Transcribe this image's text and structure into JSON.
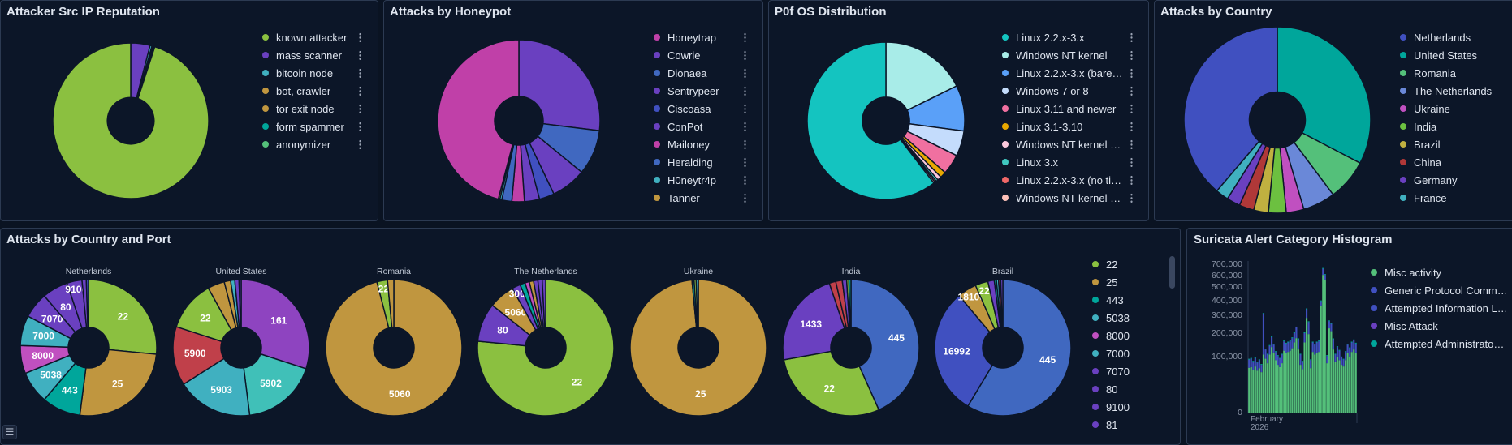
{
  "panels": {
    "reputation": {
      "title": "Attacker Src IP Reputation",
      "slices": [
        {
          "label": "known attacker",
          "value": 95,
          "color": "#8bc040"
        },
        {
          "label": "mass scanner",
          "value": 4,
          "color": "#6a40c0"
        },
        {
          "label": "bitcoin node",
          "value": 0.4,
          "color": "#40b0c0"
        },
        {
          "label": "bot, crawler",
          "value": 0.2,
          "color": "#c0963f"
        },
        {
          "label": "tor exit node",
          "value": 0.2,
          "color": "#c0963f"
        },
        {
          "label": "form spammer",
          "value": 0.1,
          "color": "#00a69b"
        },
        {
          "label": "anonymizer",
          "value": 0.1,
          "color": "#54c07a"
        }
      ]
    },
    "honeypot": {
      "title": "Attacks by Honeypot",
      "slices": [
        {
          "label": "Honeytrap",
          "value": 46,
          "color": "#c040a8"
        },
        {
          "label": "Cowrie",
          "value": 27,
          "color": "#6a40c0"
        },
        {
          "label": "Dionaea",
          "value": 9,
          "color": "#4068c0"
        },
        {
          "label": "Sentrypeer",
          "value": 7,
          "color": "#6a40c0"
        },
        {
          "label": "Ciscoasa",
          "value": 3,
          "color": "#4050c0"
        },
        {
          "label": "ConPot",
          "value": 3,
          "color": "#6a40c0"
        },
        {
          "label": "Mailoney",
          "value": 2.5,
          "color": "#c040a8"
        },
        {
          "label": "Heralding",
          "value": 2,
          "color": "#4068c0"
        },
        {
          "label": "H0neytr4p",
          "value": 0.4,
          "color": "#40b0c0"
        },
        {
          "label": "Tanner",
          "value": 0.3,
          "color": "#c0963f"
        }
      ]
    },
    "p0f": {
      "title": "P0f OS Distribution",
      "slices": [
        {
          "label": "Linux 2.2.x-3.x",
          "value": 58,
          "color": "#14c4c0"
        },
        {
          "label": "Windows NT kernel",
          "value": 17,
          "color": "#a8ece8"
        },
        {
          "label": "Linux 2.2.x-3.x (bare…",
          "value": 9,
          "color": "#5aa0f8"
        },
        {
          "label": "Windows 7 or 8",
          "value": 5,
          "color": "#c4dcfc"
        },
        {
          "label": "Linux 3.11 and newer",
          "value": 4,
          "color": "#f070a0"
        },
        {
          "label": "Linux 3.1-3.10",
          "value": 1.2,
          "color": "#e8a800"
        },
        {
          "label": "Windows NT kernel …",
          "value": 0.8,
          "color": "#fcc8dc"
        },
        {
          "label": "Linux 3.x",
          "value": 0.4,
          "color": "#40c8c0"
        },
        {
          "label": "Linux 2.2.x-3.x (no ti…",
          "value": 0.3,
          "color": "#f06868"
        },
        {
          "label": "Windows NT kernel …",
          "value": 0.3,
          "color": "#fcc0b8"
        }
      ]
    },
    "country": {
      "title": "Attacks by Country",
      "slices": [
        {
          "label": "Netherlands",
          "value": 38,
          "color": "#4050c0"
        },
        {
          "label": "United States",
          "value": 32,
          "color": "#00a69b"
        },
        {
          "label": "Romania",
          "value": 7,
          "color": "#54c07a"
        },
        {
          "label": "The Netherlands",
          "value": 5.5,
          "color": "#6a88d8"
        },
        {
          "label": "Ukraine",
          "value": 3,
          "color": "#c050c0"
        },
        {
          "label": "India",
          "value": 3,
          "color": "#6cc040"
        },
        {
          "label": "Brazil",
          "value": 2.5,
          "color": "#c0b040"
        },
        {
          "label": "China",
          "value": 2.5,
          "color": "#b03838"
        },
        {
          "label": "Germany",
          "value": 2.3,
          "color": "#6a40c0"
        },
        {
          "label": "France",
          "value": 2.2,
          "color": "#40b0c0"
        }
      ]
    }
  },
  "country_port": {
    "title": "Attacks by Country and Port",
    "legend": [
      {
        "label": "22",
        "color": "#8bc040"
      },
      {
        "label": "25",
        "color": "#c0963f"
      },
      {
        "label": "443",
        "color": "#00a69b"
      },
      {
        "label": "5038",
        "color": "#40b0c0"
      },
      {
        "label": "8000",
        "color": "#c050c0"
      },
      {
        "label": "7000",
        "color": "#40b0c0"
      },
      {
        "label": "7070",
        "color": "#6a40c0"
      },
      {
        "label": "80",
        "color": "#6a40c0"
      },
      {
        "label": "9100",
        "color": "#6a40c0"
      },
      {
        "label": "81",
        "color": "#6a40c0"
      }
    ],
    "charts": [
      {
        "country": "Netherlands",
        "slices": [
          {
            "port": "22",
            "v": 26,
            "c": "#8bc040"
          },
          {
            "port": "25",
            "v": 25,
            "c": "#c0963f"
          },
          {
            "port": "443",
            "v": 9,
            "c": "#00a69b"
          },
          {
            "port": "5038",
            "v": 7.5,
            "c": "#40b0c0"
          },
          {
            "port": "8000",
            "v": 6.5,
            "c": "#c050c0"
          },
          {
            "port": "7000",
            "v": 7,
            "c": "#40b0c0"
          },
          {
            "port": "7070",
            "v": 6,
            "c": "#6a40c0"
          },
          {
            "port": "80",
            "v": 6,
            "c": "#6a40c0"
          },
          {
            "port": "9100",
            "v": 3.5,
            "c": "#6a40c0"
          },
          {
            "v": 1,
            "c": "#6a40c0"
          },
          {
            "v": 0.5,
            "c": "#4050c0"
          }
        ]
      },
      {
        "country": "United States",
        "slices": [
          {
            "port": "161",
            "v": 30,
            "c": "#8e44c0"
          },
          {
            "port": "5902",
            "v": 18,
            "c": "#40c0b8"
          },
          {
            "port": "5903",
            "v": 18,
            "c": "#40b0c0"
          },
          {
            "port": "5900",
            "v": 14,
            "c": "#c0404a"
          },
          {
            "port": "22",
            "v": 12,
            "c": "#8bc040"
          },
          {
            "v": 4,
            "c": "#c0963f"
          },
          {
            "v": 1.5,
            "c": "#c0963f"
          },
          {
            "v": 1,
            "c": "#40b0c0"
          },
          {
            "v": 1,
            "c": "#6a40c0"
          },
          {
            "v": 0.5,
            "c": "#6a40c0"
          }
        ]
      },
      {
        "country": "Romania",
        "slices": [
          {
            "port": "5060",
            "v": 96,
            "c": "#c0963f"
          },
          {
            "port": "22",
            "v": 2.5,
            "c": "#8bc040"
          },
          {
            "v": 1.5,
            "c": "#c0963f"
          }
        ]
      },
      {
        "country": "The Netherlands",
        "slices": [
          {
            "port": "22",
            "v": 75,
            "c": "#8bc040"
          },
          {
            "port": "80",
            "v": 9,
            "c": "#6a40c0"
          },
          {
            "port": "5060",
            "v": 6,
            "c": "#c0963f"
          },
          {
            "port": "3000",
            "v": 2,
            "c": "#6a40c0"
          },
          {
            "v": 1.2,
            "c": "#00a69b"
          },
          {
            "v": 1,
            "c": "#c050c0"
          },
          {
            "v": 1,
            "c": "#c0963f"
          },
          {
            "v": 1,
            "c": "#6a40c0"
          },
          {
            "v": 1,
            "c": "#6a40c0"
          },
          {
            "v": 0.8,
            "c": "#6a40c0"
          }
        ]
      },
      {
        "country": "Ukraine",
        "slices": [
          {
            "port": "25",
            "v": 98.5,
            "c": "#c0963f"
          },
          {
            "v": 0.5,
            "c": "#00a69b"
          },
          {
            "v": 0.5,
            "c": "#8bc040"
          },
          {
            "v": 0.5,
            "c": "#40b0c0"
          }
        ]
      },
      {
        "country": "India",
        "slices": [
          {
            "port": "445",
            "v": 42,
            "c": "#4068c0"
          },
          {
            "port": "22",
            "v": 28,
            "c": "#8bc040"
          },
          {
            "port": "1433",
            "v": 22,
            "c": "#6a40c0"
          },
          {
            "v": 1.5,
            "c": "#c0404a"
          },
          {
            "v": 1.5,
            "c": "#c0404a"
          },
          {
            "v": 1,
            "c": "#6a40c0"
          },
          {
            "v": 0.5,
            "c": "#8bc040"
          },
          {
            "v": 0.5,
            "c": "#00a69b"
          }
        ]
      },
      {
        "country": "Brazil",
        "slices": [
          {
            "port": "445",
            "v": 58,
            "c": "#4068c0"
          },
          {
            "port": "16992",
            "v": 30,
            "c": "#4050c0"
          },
          {
            "port": "18100",
            "v": 4.5,
            "c": "#c0963f"
          },
          {
            "port": "22",
            "v": 3,
            "c": "#8bc040"
          },
          {
            "v": 1.5,
            "c": "#6a40c0"
          },
          {
            "v": 0.5,
            "c": "#00a69b"
          },
          {
            "v": 0.5,
            "c": "#40b0c0"
          },
          {
            "v": 0.5,
            "c": "#c0404a"
          },
          {
            "v": 0.5,
            "c": "#6a40c0"
          }
        ]
      }
    ]
  },
  "chart_data": {
    "type": "bar",
    "title": "Suricata Alert Category Histogram",
    "stacked": true,
    "yscale": "sqrt",
    "ylim": [
      0,
      700000
    ],
    "yticks": [
      "0",
      "100,000",
      "200,000",
      "300,000",
      "400,000",
      "500,000",
      "600,000",
      "700,000"
    ],
    "ytick_values": [
      0,
      100000,
      200000,
      300000,
      400000,
      500000,
      600000,
      700000
    ],
    "xlabel_tick": [
      "February",
      "2026"
    ],
    "legend": [
      {
        "label": "Misc activity",
        "color": "#54c07a"
      },
      {
        "label": "Generic Protocol Comm…",
        "color": "#4050c0"
      },
      {
        "label": "Attempted Information L…",
        "color": "#4050c0"
      },
      {
        "label": "Misc Attack",
        "color": "#6a40c0"
      },
      {
        "label": "Attempted Administrato…",
        "color": "#00a69b"
      }
    ],
    "totals_k": [
      92,
      95,
      85,
      97,
      82,
      90,
      75,
      315,
      130,
      110,
      145,
      185,
      150,
      120,
      105,
      95,
      110,
      165,
      155,
      160,
      165,
      180,
      205,
      235,
      175,
      110,
      85,
      205,
      345,
      265,
      90,
      160,
      150,
      160,
      165,
      400,
      665,
      610,
      105,
      270,
      255,
      175,
      110,
      140,
      125,
      100,
      92,
      120,
      150,
      135,
      160,
      170,
      155
    ],
    "misc_activity_k": [
      66,
      68,
      60,
      70,
      58,
      65,
      54,
      110,
      95,
      80,
      110,
      140,
      115,
      90,
      75,
      68,
      80,
      125,
      115,
      120,
      125,
      135,
      160,
      180,
      130,
      75,
      62,
      160,
      290,
      200,
      65,
      120,
      110,
      115,
      120,
      370,
      610,
      570,
      80,
      230,
      215,
      130,
      85,
      100,
      90,
      75,
      70,
      90,
      115,
      100,
      120,
      130,
      115
    ]
  }
}
